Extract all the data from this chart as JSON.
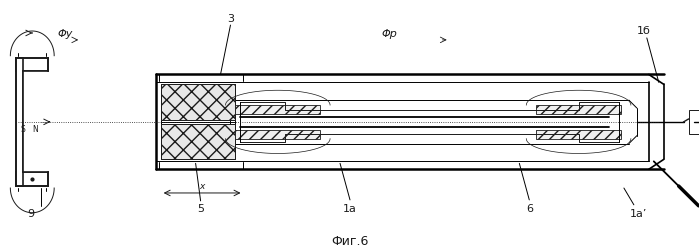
{
  "fig_label": "Фиг.6",
  "bg_color": "#ffffff",
  "line_color": "#1a1a1a",
  "labels": {
    "phi_u": "Φу",
    "phi_r": "Φр",
    "num3": "3",
    "num1b": "1б",
    "num1a": "1а",
    "num1a_prime": "1а’",
    "num5": "5",
    "num6": "6",
    "num9": "9",
    "x": "x",
    "S": "S",
    "N": "N"
  }
}
